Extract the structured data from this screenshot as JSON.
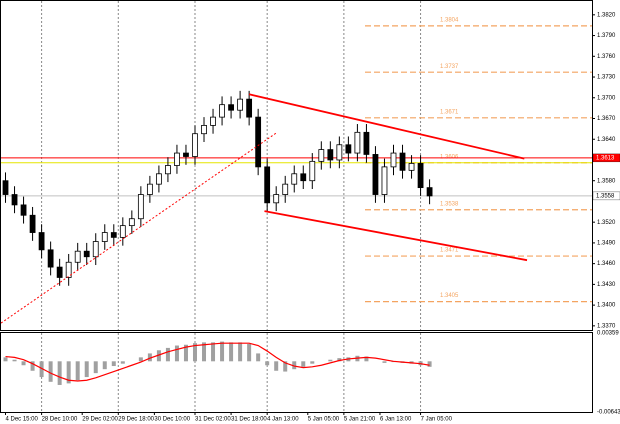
{
  "chart_data": {
    "type": "candlestick",
    "open": [
      1.358,
      1.356,
      1.3545,
      1.353,
      1.3505,
      1.348,
      1.3455,
      1.344,
      1.3462,
      1.3478,
      1.347,
      1.3492,
      1.3505,
      1.3498,
      1.3515,
      1.3525,
      1.356,
      1.3575,
      1.359,
      1.3602,
      1.362,
      1.3615,
      1.3648,
      1.366,
      1.3672,
      1.369,
      1.3682,
      1.3698,
      1.3672,
      1.36,
      1.3548,
      1.356,
      1.3575,
      1.359,
      1.358,
      1.3608,
      1.3625,
      1.361,
      1.3632,
      1.362,
      1.365,
      1.3618,
      1.356,
      1.36,
      1.362,
      1.3595,
      1.3605,
      1.357
    ],
    "high": [
      1.3592,
      1.3572,
      1.3557,
      1.3542,
      1.3517,
      1.3492,
      1.3467,
      1.3474,
      1.349,
      1.349,
      1.3504,
      1.3517,
      1.3517,
      1.3527,
      1.3537,
      1.3572,
      1.3587,
      1.3602,
      1.3614,
      1.3632,
      1.3632,
      1.366,
      1.3672,
      1.3684,
      1.3702,
      1.3702,
      1.371,
      1.371,
      1.3684,
      1.3612,
      1.3572,
      1.3587,
      1.3602,
      1.3602,
      1.362,
      1.3637,
      1.3637,
      1.3644,
      1.3644,
      1.3662,
      1.3662,
      1.363,
      1.3612,
      1.3632,
      1.3632,
      1.3617,
      1.3617,
      1.3582
    ],
    "low": [
      1.3548,
      1.3533,
      1.3518,
      1.3493,
      1.3468,
      1.3443,
      1.3428,
      1.3428,
      1.345,
      1.3458,
      1.3458,
      1.348,
      1.3486,
      1.3486,
      1.3503,
      1.3513,
      1.3548,
      1.3563,
      1.3578,
      1.359,
      1.3603,
      1.3603,
      1.3636,
      1.3648,
      1.366,
      1.367,
      1.367,
      1.366,
      1.3588,
      1.3536,
      1.3536,
      1.3548,
      1.3563,
      1.3568,
      1.3568,
      1.3596,
      1.3598,
      1.3598,
      1.3608,
      1.3608,
      1.3606,
      1.3548,
      1.3548,
      1.3588,
      1.3583,
      1.3583,
      1.3558,
      1.3546
    ],
    "close": [
      1.356,
      1.3545,
      1.353,
      1.3505,
      1.348,
      1.3455,
      1.344,
      1.3462,
      1.3478,
      1.347,
      1.3492,
      1.3505,
      1.3498,
      1.3515,
      1.3525,
      1.356,
      1.3575,
      1.359,
      1.3602,
      1.362,
      1.3615,
      1.3648,
      1.366,
      1.3672,
      1.369,
      1.3682,
      1.3698,
      1.3672,
      1.36,
      1.3548,
      1.356,
      1.3575,
      1.359,
      1.358,
      1.3608,
      1.3625,
      1.361,
      1.3632,
      1.362,
      1.365,
      1.3618,
      1.356,
      1.36,
      1.362,
      1.3595,
      1.3605,
      1.357,
      1.3558
    ],
    "ylim": [
      1.3364,
      1.384
    ],
    "yticks": [
      {
        "value": 1.382,
        "label": "1.3820"
      },
      {
        "value": 1.379,
        "label": "1.3790"
      },
      {
        "value": 1.376,
        "label": "1.3760"
      },
      {
        "value": 1.373,
        "label": "1.3730"
      },
      {
        "value": 1.37,
        "label": "1.3700"
      },
      {
        "value": 1.367,
        "label": "1.3670"
      },
      {
        "value": 1.364,
        "label": "1.3640"
      },
      {
        "value": 1.358,
        "label": "1.3580"
      },
      {
        "value": 1.352,
        "label": "1.3520"
      },
      {
        "value": 1.349,
        "label": "1.3490"
      },
      {
        "value": 1.346,
        "label": "1.3460"
      },
      {
        "value": 1.343,
        "label": "1.3430"
      },
      {
        "value": 1.34,
        "label": "1.3400"
      },
      {
        "value": 1.337,
        "label": "1.3370"
      }
    ],
    "xlim": [
      -0.5,
      65
    ],
    "xticks": [
      {
        "value": 0,
        "label": "4 Dec 15:00"
      },
      {
        "value": 4,
        "label": "28 Dec 10:00"
      },
      {
        "value": 8.5,
        "label": "29 Dec 02:00"
      },
      {
        "value": 12.5,
        "label": "29 Dec 18:00"
      },
      {
        "value": 16.5,
        "label": "30 Dec 10:00"
      },
      {
        "value": 21,
        "label": "31 Dec 02:00"
      },
      {
        "value": 25,
        "label": "31 Dec 18:00"
      },
      {
        "value": 29,
        "label": "4 Jan 13:00"
      },
      {
        "value": 33.5,
        "label": "5 Jan 05:00"
      },
      {
        "value": 37.5,
        "label": "5 Jan 21:00"
      },
      {
        "value": 41.5,
        "label": "6 Jan 13:00"
      },
      {
        "value": 46,
        "label": "7 Jan 05:00"
      }
    ],
    "grid": true,
    "hlines": [
      {
        "value": 1.3613,
        "label": "1.3613",
        "color": "#ff0000"
      },
      {
        "value": 1.3606,
        "color": "#e6e600"
      },
      {
        "value": 1.3558,
        "label": "1.3558",
        "color": "#c0c0c0"
      }
    ],
    "levels": [
      {
        "value": 1.3804,
        "label": "1.3804"
      },
      {
        "value": 1.3737,
        "label": "1.3737"
      },
      {
        "value": 1.3671,
        "label": "1.3671"
      },
      {
        "value": 1.3606,
        "label": "1.3606"
      },
      {
        "value": 1.3538,
        "label": "1.3538"
      },
      {
        "value": 1.3471,
        "label": "1.3471"
      },
      {
        "value": 1.3405,
        "label": "1.3405"
      }
    ],
    "levels_color": "#f4a460",
    "trend_lines": [
      {
        "x": [
          27,
          57.5
        ],
        "y": [
          1.3705,
          1.3612
        ],
        "color": "#ff0000"
      },
      {
        "x": [
          28.7,
          57.8
        ],
        "y": [
          1.3536,
          1.3465
        ],
        "color": "#ff0000"
      },
      {
        "x": [
          -0.5,
          30
        ],
        "y": [
          1.3374,
          1.3649
        ],
        "color": "#ff0000",
        "dotted": true
      }
    ],
    "macd": {
      "histogram": [
        0.0005,
        0.0002,
        -0.0005,
        -0.0012,
        -0.002,
        -0.0026,
        -0.003,
        -0.0028,
        -0.0024,
        -0.002,
        -0.0015,
        -0.001,
        -0.0006,
        -0.0003,
        0.0,
        0.0005,
        0.001,
        0.0014,
        0.0017,
        0.002,
        0.0021,
        0.0023,
        0.0024,
        0.0024,
        0.0025,
        0.0024,
        0.0024,
        0.0022,
        0.001,
        -0.0005,
        -0.0012,
        -0.0013,
        -0.001,
        -0.0007,
        -0.0003,
        0.0,
        0.0002,
        0.0004,
        0.0005,
        0.0007,
        0.0006,
        0.0,
        -0.0002,
        -0.0001,
        -0.0002,
        -0.0003,
        -0.0005,
        -0.0007
      ],
      "signal": [
        0.0006,
        0.0005,
        0.0002,
        -0.0003,
        -0.0009,
        -0.0015,
        -0.002,
        -0.0024,
        -0.0025,
        -0.0024,
        -0.0021,
        -0.0017,
        -0.0013,
        -0.0009,
        -0.0005,
        -0.0001,
        0.0004,
        0.0008,
        0.0012,
        0.0015,
        0.0018,
        0.002,
        0.0021,
        0.0022,
        0.0023,
        0.0023,
        0.0023,
        0.0023,
        0.002,
        0.0013,
        0.0005,
        -0.0002,
        -0.0006,
        -0.0008,
        -0.0007,
        -0.0005,
        -0.0002,
        0.0001,
        0.0003,
        0.0004,
        0.0005,
        0.0004,
        0.0002,
        0.0,
        -0.0001,
        -0.0002,
        -0.0003,
        -0.0005
      ],
      "ylim": [
        -0.00643,
        0.00359
      ],
      "yticks": [
        0.00359,
        -0.00643
      ],
      "signal_color": "#ff0000",
      "histogram_color": "#a0a0a0"
    }
  }
}
